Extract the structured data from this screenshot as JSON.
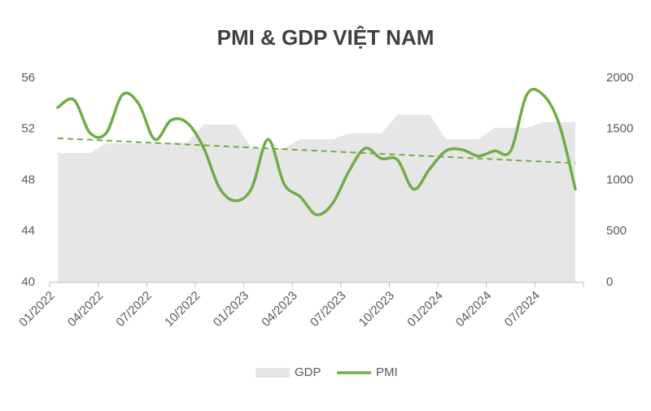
{
  "chart_data": {
    "type": "combo",
    "title": "PMI & GDP VIỆT NAM",
    "categories": [
      "01/2022",
      null,
      null,
      "04/2022",
      null,
      null,
      "07/2022",
      null,
      null,
      "10/2022",
      null,
      null,
      "01/2023",
      null,
      null,
      "04/2023",
      null,
      null,
      "07/2023",
      null,
      null,
      "10/2023",
      null,
      null,
      "01/2024",
      null,
      null,
      "04/2024",
      null,
      null,
      "07/2024",
      null,
      null
    ],
    "series": [
      {
        "name": "GDP",
        "kind": "area",
        "axis": "y2",
        "color": "#e6e6e6",
        "values": [
          1267,
          1267,
          1267,
          1362,
          1362,
          1362,
          1370,
          1370,
          1370,
          1546,
          1546,
          1546,
          1315,
          1315,
          1315,
          1402,
          1402,
          1402,
          1458,
          1458,
          1458,
          1641,
          1641,
          1641,
          1402,
          1402,
          1402,
          1514,
          1514,
          1514,
          1570,
          1570,
          1570
        ]
      },
      {
        "name": "PMI",
        "kind": "line",
        "axis": "y",
        "color": "#70ad47",
        "values": [
          53.7,
          54.3,
          51.7,
          51.7,
          54.7,
          54.0,
          51.2,
          52.7,
          52.5,
          50.6,
          47.4,
          46.4,
          47.4,
          51.2,
          47.7,
          46.7,
          45.3,
          46.2,
          48.7,
          50.5,
          49.7,
          49.6,
          47.3,
          48.9,
          50.3,
          50.4,
          49.9,
          50.3,
          50.3,
          54.7,
          54.7,
          52.4,
          47.3
        ]
      }
    ],
    "ylim": [
      40,
      56
    ],
    "yticks": [
      40,
      44,
      48,
      52,
      56
    ],
    "y2lim": [
      0,
      2000
    ],
    "y2ticks": [
      0,
      500,
      1000,
      1500,
      2000
    ],
    "trendline": true,
    "smooth": true,
    "legend": "bottom"
  }
}
